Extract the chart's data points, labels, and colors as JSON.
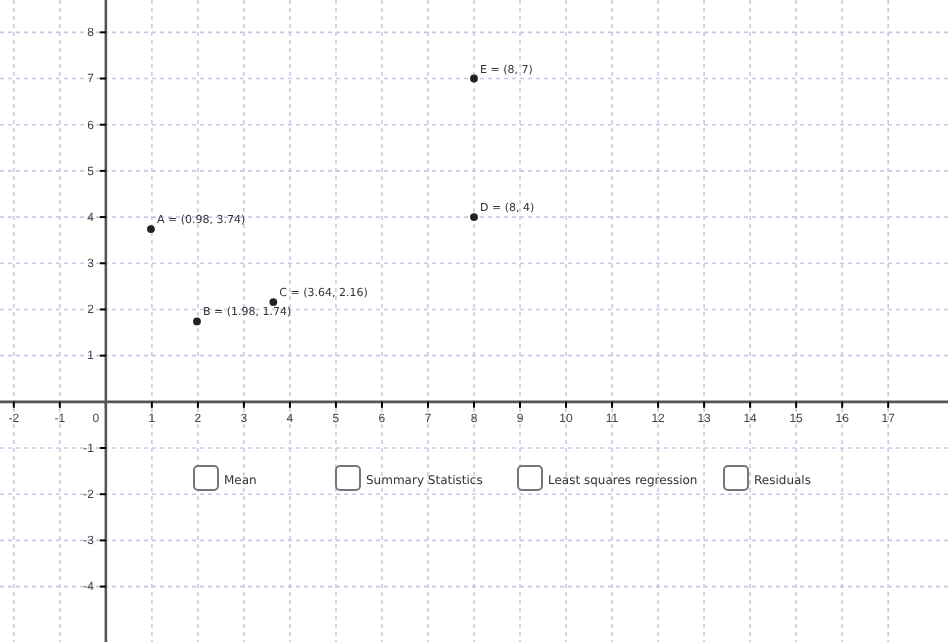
{
  "chart_data": {
    "type": "scatter",
    "x": [
      0.98,
      1.98,
      3.64,
      8,
      8
    ],
    "values": [
      3.74,
      1.74,
      2.16,
      4,
      7
    ],
    "color": "#222222",
    "marker": "circle",
    "xlim": [
      -2.3,
      18.3
    ],
    "ylim": [
      -5.2,
      8.7
    ],
    "xticks": [
      -2,
      -1,
      0,
      1,
      2,
      3,
      4,
      5,
      6,
      7,
      8,
      9,
      10,
      11,
      12,
      13,
      14,
      15,
      16,
      17
    ],
    "yticks": [
      -4,
      -3,
      -2,
      -1,
      1,
      2,
      3,
      4,
      5,
      6,
      7,
      8
    ],
    "grid": true,
    "annotations": [
      {
        "text": "A = (0.98, 3.74)",
        "x": 0.98,
        "y": 3.74
      },
      {
        "text": "B = (1.98, 1.74)",
        "x": 1.98,
        "y": 1.74
      },
      {
        "text": "C = (3.64, 2.16)",
        "x": 3.64,
        "y": 2.16
      },
      {
        "text": "D = (8, 4)",
        "x": 8,
        "y": 4
      },
      {
        "text": "E = (8, 7)",
        "x": 8,
        "y": 7
      },
      "Mean",
      "Summary Statistics",
      "Least squares regression",
      "Residuals"
    ]
  }
}
